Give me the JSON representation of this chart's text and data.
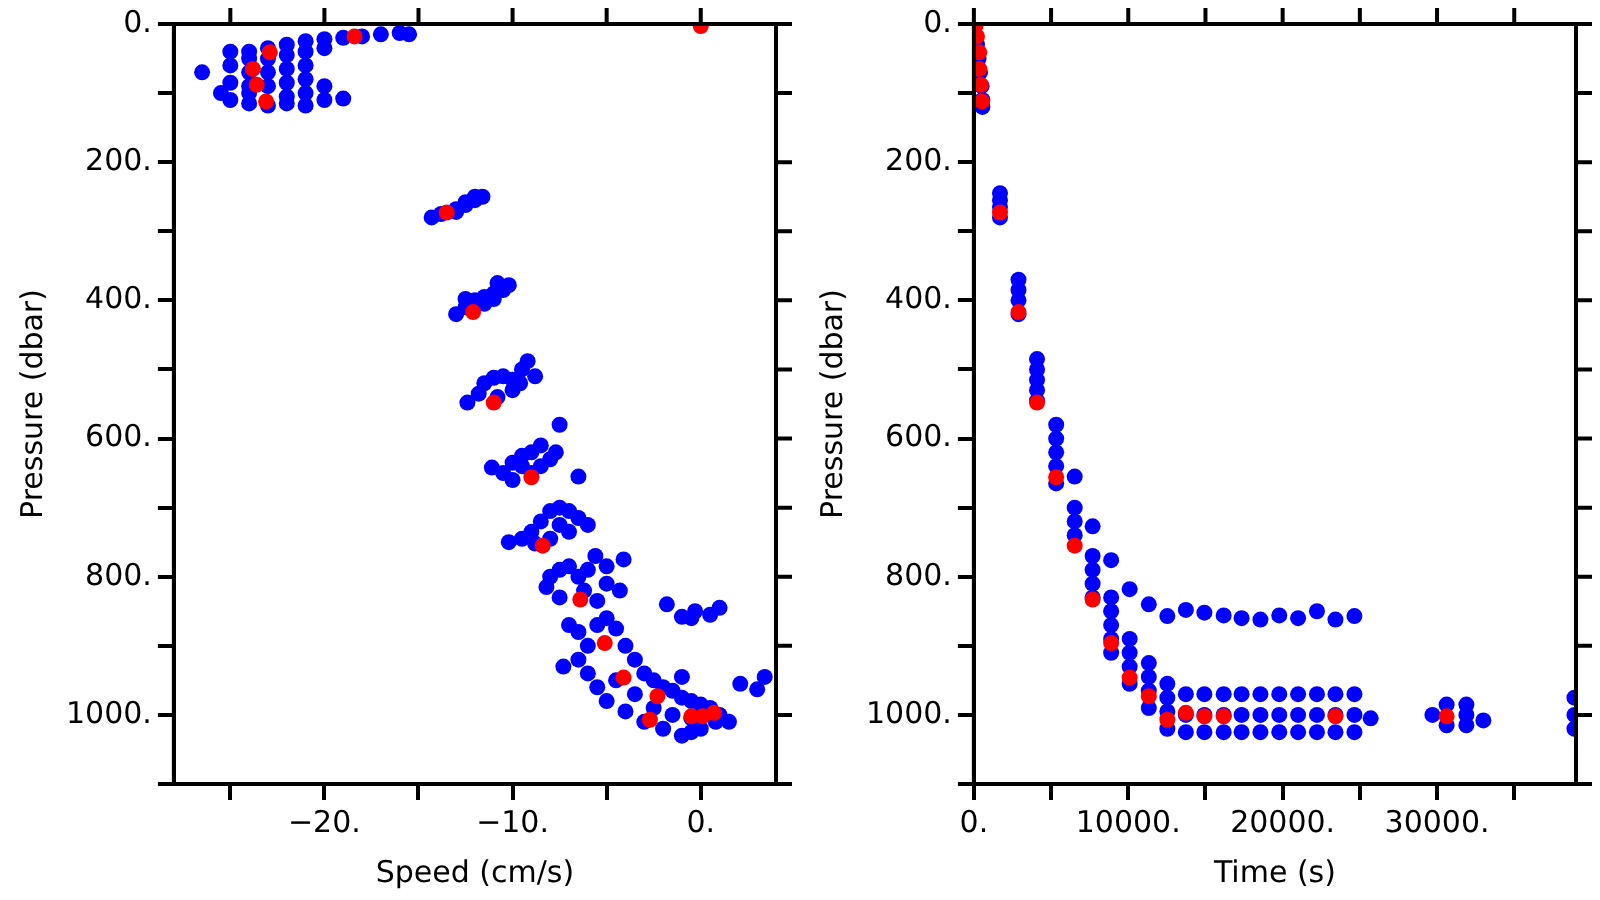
{
  "chart_data": [
    {
      "type": "scatter",
      "xlabel": "Speed (cm/s)",
      "ylabel": "Pressure (dbar)",
      "xlim": [
        -28,
        4
      ],
      "ylim": [
        1100,
        0
      ],
      "grid": false,
      "legend": false,
      "marker": "circle",
      "xticks": [
        {
          "value": -25,
          "label": null
        },
        {
          "value": -20,
          "label": "−20."
        },
        {
          "value": -15,
          "label": null
        },
        {
          "value": -10,
          "label": "−10."
        },
        {
          "value": -5,
          "label": null
        },
        {
          "value": 0,
          "label": "0."
        }
      ],
      "yticks": [
        {
          "value": 0,
          "label": "0."
        },
        {
          "value": 100,
          "label": null
        },
        {
          "value": 200,
          "label": "200."
        },
        {
          "value": 300,
          "label": null
        },
        {
          "value": 400,
          "label": "400."
        },
        {
          "value": 500,
          "label": null
        },
        {
          "value": 600,
          "label": "600."
        },
        {
          "value": 700,
          "label": null
        },
        {
          "value": 800,
          "label": "800."
        },
        {
          "value": 900,
          "label": null
        },
        {
          "value": 1000,
          "label": "1000."
        },
        {
          "value": 1100,
          "label": null
        }
      ],
      "series": [
        {
          "color": "#0000ff",
          "x": [
            -16,
            -17,
            -18,
            -19,
            -20,
            -21,
            -22,
            -23,
            -24,
            -25,
            -24,
            -23,
            -22,
            -21,
            -20,
            -25,
            -24,
            -23,
            -22,
            -21,
            -26.5,
            -25,
            -24,
            -23,
            -22,
            -21,
            -20,
            -21,
            -22,
            -19,
            -25.5,
            -25,
            -24,
            -23,
            -22,
            -20,
            -24,
            -21,
            -15.5,
            -14.3,
            -13.8,
            -13,
            -12.5,
            -12,
            -11.6,
            -12,
            -13,
            -12.5,
            -13,
            -12.5,
            -12,
            -11.5,
            -11,
            -10.5,
            -10.2,
            -10.8,
            -11.5,
            -12.5,
            -11,
            -12.4,
            -11.8,
            -11.5,
            -11,
            -10.5,
            -10,
            -9.5,
            -9.2,
            -8.8,
            -10,
            -10.8,
            -9.6,
            -11.1,
            -10.5,
            -10,
            -9.5,
            -9,
            -8.5,
            -8,
            -7.7,
            -7.5,
            -6.5,
            -9,
            -8.5,
            -10,
            -9.5,
            -10.2,
            -9.5,
            -9,
            -8.5,
            -8,
            -7.5,
            -7,
            -6.5,
            -6,
            -7,
            -8,
            -8.8,
            -7.5,
            -8.2,
            -8,
            -7.5,
            -7,
            -6.5,
            -6,
            -5.6,
            -5,
            -4.1,
            -4.3,
            -5.5,
            -7.5,
            -6.2,
            -5,
            -1.8,
            -1,
            -0.5,
            0.5,
            1,
            -0.3,
            -7.3,
            -7,
            -6.5,
            -6,
            -5.5,
            -5,
            -4.5,
            -4,
            -3.5,
            -3,
            -2.5,
            -2,
            -1.5,
            -1,
            -0.5,
            0,
            0.5,
            1,
            1.5,
            0,
            -0.5,
            -1,
            -2,
            -3,
            -4,
            -5,
            -5.5,
            -6,
            -6.5,
            -4.5,
            -3.5,
            -2.5,
            -1.5,
            -0.5,
            0.8,
            -1,
            2.1,
            3.4,
            3
          ],
          "values": [
            13,
            15,
            18,
            20,
            22,
            25,
            30,
            35,
            40,
            40,
            50,
            50,
            45,
            40,
            35,
            60,
            70,
            70,
            65,
            60,
            70,
            85,
            90,
            90,
            85,
            80,
            90,
            100,
            105,
            108,
            100,
            110,
            115,
            118,
            115,
            110,
            100,
            118,
            15,
            280,
            275,
            268,
            262,
            255,
            250,
            250,
            272,
            258,
            420,
            410,
            400,
            395,
            390,
            385,
            378,
            375,
            405,
            398,
            398,
            548,
            535,
            520,
            512,
            510,
            515,
            500,
            488,
            510,
            530,
            540,
            520,
            642,
            650,
            660,
            640,
            620,
            610,
            630,
            620,
            580,
            655,
            650,
            640,
            635,
            625,
            750,
            745,
            735,
            720,
            705,
            700,
            705,
            715,
            725,
            735,
            745,
            752,
            725,
            815,
            800,
            790,
            785,
            800,
            790,
            770,
            785,
            775,
            820,
            835,
            830,
            820,
            810,
            840,
            858,
            860,
            855,
            845,
            850,
            930,
            870,
            880,
            900,
            870,
            860,
            875,
            900,
            920,
            940,
            950,
            960,
            965,
            975,
            980,
            985,
            990,
            1000,
            1010,
            1020,
            1025,
            1030,
            1020,
            1010,
            995,
            980,
            960,
            940,
            920,
            950,
            970,
            990,
            1000,
            1005,
            1010,
            945,
            955,
            945,
            963
          ]
        },
        {
          "color": "#ff0000",
          "x": [
            -18.4,
            -22.9,
            -23.8,
            -23.6,
            -23.1,
            0,
            -13.5,
            -12.1,
            -11,
            -9,
            -8.4,
            -6.4,
            -5.1,
            -4.1,
            -2.3,
            -2.7,
            -0.5,
            0.1,
            0.7
          ],
          "values": [
            18,
            41,
            65,
            88,
            112,
            3,
            273,
            417,
            548,
            656,
            755,
            833,
            896,
            946,
            973,
            1007,
            1002,
            1002,
            997
          ]
        }
      ]
    },
    {
      "type": "scatter",
      "xlabel": "Time (s)",
      "ylabel": "Pressure (dbar)",
      "xlim": [
        0,
        39000
      ],
      "ylim": [
        1100,
        0
      ],
      "grid": false,
      "legend": false,
      "marker": "circle",
      "xticks": [
        {
          "value": 0,
          "label": "0."
        },
        {
          "value": 5000,
          "label": null
        },
        {
          "value": 10000,
          "label": "10000."
        },
        {
          "value": 15000,
          "label": null
        },
        {
          "value": 20000,
          "label": "20000."
        },
        {
          "value": 25000,
          "label": null
        },
        {
          "value": 30000,
          "label": "30000."
        },
        {
          "value": 35000,
          "label": null
        }
      ],
      "yticks": [
        {
          "value": 0,
          "label": "0."
        },
        {
          "value": 100,
          "label": null
        },
        {
          "value": 200,
          "label": "200."
        },
        {
          "value": 300,
          "label": null
        },
        {
          "value": 400,
          "label": "400."
        },
        {
          "value": 500,
          "label": null
        },
        {
          "value": 600,
          "label": "600."
        },
        {
          "value": 700,
          "label": null
        },
        {
          "value": 800,
          "label": "800."
        },
        {
          "value": 900,
          "label": null
        },
        {
          "value": 1000,
          "label": "1000."
        },
        {
          "value": 1100,
          "label": null
        }
      ],
      "series": [
        {
          "color": "#0000ff",
          "x": [
            200,
            300,
            400,
            500,
            550,
            550,
            1690,
            1690,
            1690,
            1690,
            2890,
            2890,
            2890,
            2890,
            4090,
            4090,
            4090,
            4090,
            4090,
            5330,
            5330,
            5330,
            5330,
            5330,
            6530,
            6530,
            6530,
            6530,
            7690,
            7690,
            7690,
            7690,
            7690,
            8890,
            8890,
            8890,
            8890,
            8890,
            8890,
            10090,
            10090,
            10090,
            10090,
            10090,
            11330,
            11330,
            11330,
            11330,
            11330,
            12530,
            12530,
            12530,
            12530,
            12530,
            13730,
            13730,
            13730,
            13730,
            14930,
            14930,
            14930,
            14930,
            16180,
            16180,
            16180,
            16180,
            17340,
            17340,
            17340,
            17340,
            18560,
            18560,
            18560,
            18560,
            19780,
            19780,
            19780,
            19780,
            21000,
            21000,
            21000,
            21000,
            22220,
            22220,
            22220,
            22220,
            23420,
            23420,
            23420,
            23420,
            24650,
            24650,
            24650,
            24650,
            25700,
            29700,
            30620,
            30620,
            31900,
            31900,
            31900,
            33000,
            38900,
            38900,
            38900
          ],
          "values": [
            30,
            50,
            70,
            90,
            110,
            120,
            245,
            255,
            265,
            280,
            370,
            385,
            400,
            420,
            485,
            500,
            515,
            530,
            545,
            580,
            600,
            620,
            640,
            665,
            655,
            700,
            720,
            740,
            727,
            770,
            790,
            810,
            830,
            776,
            830,
            850,
            870,
            890,
            910,
            818,
            890,
            910,
            930,
            955,
            840,
            925,
            945,
            965,
            990,
            857,
            955,
            975,
            995,
            1020,
            848,
            970,
            1000,
            1025,
            852,
            970,
            1000,
            1025,
            856,
            970,
            1000,
            1025,
            860,
            970,
            1000,
            1025,
            862,
            970,
            1000,
            1025,
            856,
            970,
            1000,
            1025,
            860,
            970,
            1000,
            1025,
            850,
            970,
            1000,
            1025,
            862,
            970,
            1000,
            1025,
            857,
            970,
            1000,
            1025,
            1005,
            1000,
            985,
            1015,
            985,
            1000,
            1015,
            1008,
            975,
            1000,
            1020
          ]
        },
        {
          "color": "#ff0000",
          "x": [
            100,
            200,
            350,
            350,
            450,
            530,
            1690,
            2890,
            4090,
            5330,
            6530,
            7690,
            8890,
            10090,
            11330,
            12530,
            13730,
            14930,
            16180,
            23420,
            30620
          ],
          "values": [
            3,
            18,
            41,
            65,
            88,
            112,
            273,
            417,
            548,
            656,
            755,
            833,
            896,
            946,
            973,
            1007,
            997,
            1002,
            1002,
            1002,
            1002
          ]
        }
      ]
    }
  ]
}
